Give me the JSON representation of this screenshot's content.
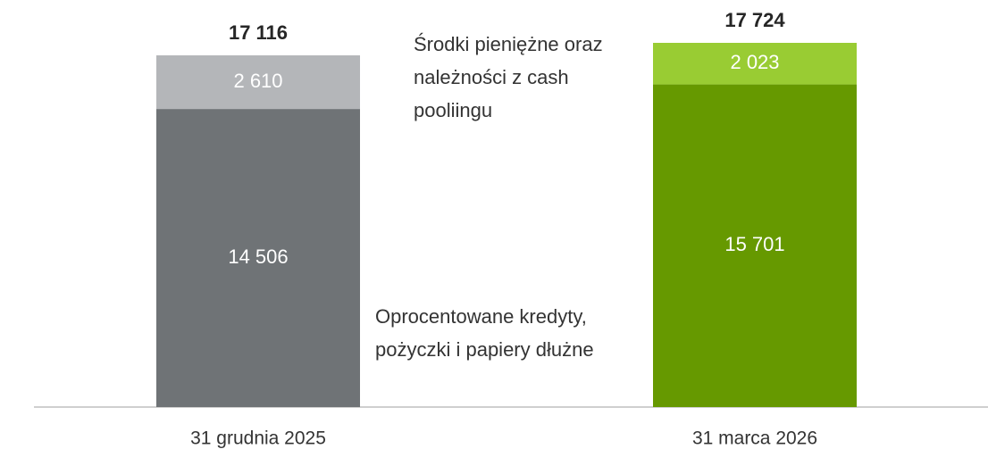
{
  "chart_data": {
    "type": "stacked_bar",
    "categories": [
      "31 grudnia 2025",
      "31 marca 2026"
    ],
    "series": [
      {
        "name": "Oprocentowane kredyty, pożyczki i papiery dłużne",
        "colors": [
          "#6f7376",
          "#669900"
        ],
        "values": [
          14506,
          15701
        ],
        "value_labels": [
          "14 506",
          "15 701"
        ]
      },
      {
        "name": "Środki pieniężne oraz należności z cash pooliingu",
        "colors": [
          "#b4b6b9",
          "#99cc33"
        ],
        "values": [
          2610,
          2023
        ],
        "value_labels": [
          "2 610",
          "2 023"
        ]
      }
    ],
    "totals": [
      17116,
      17724
    ],
    "total_labels": [
      "17 116",
      "17 724"
    ]
  }
}
